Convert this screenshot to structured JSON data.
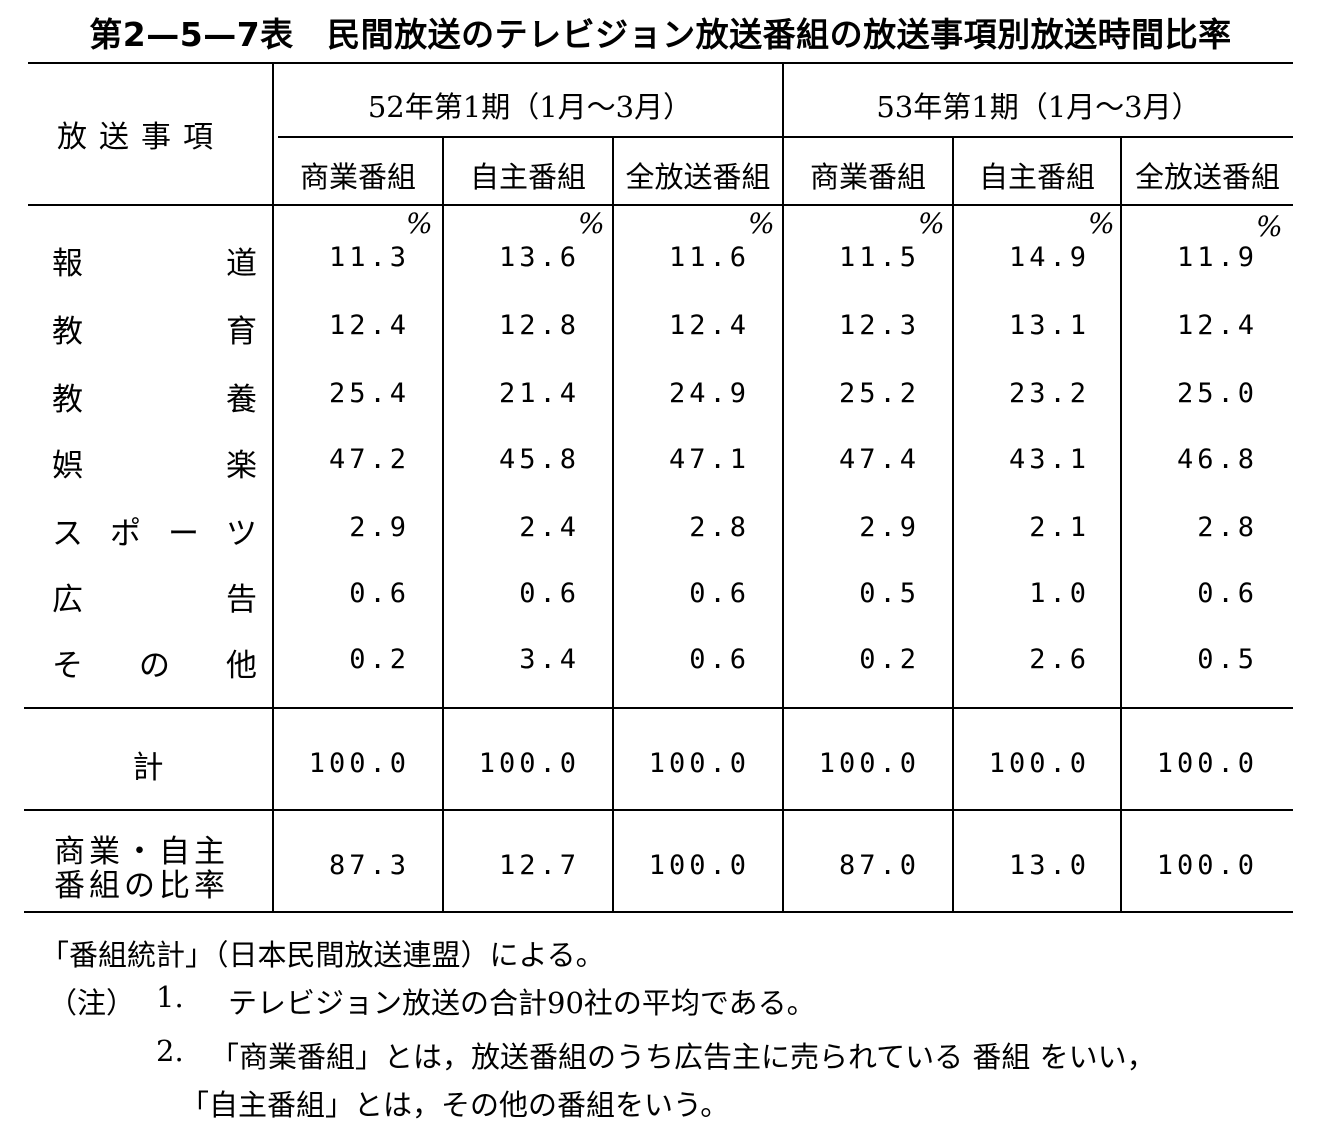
{
  "title": "第2—5—7表　民間放送のテレビジョン放送番組の放送事項別放送時間比率",
  "header": {
    "category_label": "放送事項",
    "periods": [
      "52年第1期（1月～3月）",
      "53年第1期（1月～3月）"
    ],
    "columns": [
      "商業番組",
      "自主番組",
      "全放送番組",
      "商業番組",
      "自主番組",
      "全放送番組"
    ],
    "percent_unit": "%"
  },
  "rows": [
    {
      "label": [
        "報",
        "道"
      ],
      "values": [
        "11.3",
        "13.6",
        "11.6",
        "11.5",
        "14.9",
        "11.9"
      ]
    },
    {
      "label": [
        "教",
        "育"
      ],
      "values": [
        "12.4",
        "12.8",
        "12.4",
        "12.3",
        "13.1",
        "12.4"
      ]
    },
    {
      "label": [
        "教",
        "養"
      ],
      "values": [
        "25.4",
        "21.4",
        "24.9",
        "25.2",
        "23.2",
        "25.0"
      ]
    },
    {
      "label": [
        "娯",
        "楽"
      ],
      "values": [
        "47.2",
        "45.8",
        "47.1",
        "47.4",
        "43.1",
        "46.8"
      ]
    },
    {
      "label": [
        "ス",
        "ポ",
        "ー",
        "ツ"
      ],
      "values": [
        "2.9",
        "2.4",
        "2.8",
        "2.9",
        "2.1",
        "2.8"
      ]
    },
    {
      "label": [
        "広",
        "告"
      ],
      "values": [
        "0.6",
        "0.6",
        "0.6",
        "0.5",
        "1.0",
        "0.6"
      ]
    },
    {
      "label": [
        "そ",
        "の",
        "他"
      ],
      "values": [
        "0.2",
        "3.4",
        "0.6",
        "0.2",
        "2.6",
        "0.5"
      ]
    }
  ],
  "total": {
    "label": "計",
    "values": [
      "100.0",
      "100.0",
      "100.0",
      "100.0",
      "100.0",
      "100.0"
    ]
  },
  "ratio": {
    "label_line1": "商業・自主",
    "label_line2": "番組の比率",
    "values": [
      "87.3",
      "12.7",
      "100.0",
      "87.0",
      "13.0",
      "100.0"
    ]
  },
  "notes": {
    "source": "「番組統計」（日本民間放送連盟）による。",
    "prefix": "（注）",
    "n1_num": "1.",
    "n1_text": "テレビジョン放送の合計90社の平均である。",
    "n2_num": "2.",
    "n2_line1": "「商業番組」とは，放送番組のうち広告主に売られている 番組 をいい，",
    "n2_line2": "「自主番組」とは，その他の番組をいう。"
  }
}
